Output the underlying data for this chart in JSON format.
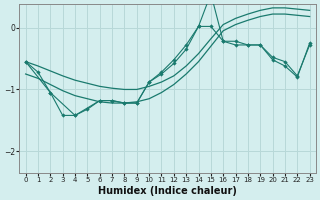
{
  "xlabel": "Humidex (Indice chaleur)",
  "bg_color": "#d4eeee",
  "line_color": "#1a7a6e",
  "grid_color": "#b8d8d8",
  "xlim": [
    -0.5,
    23.5
  ],
  "ylim": [
    -2.35,
    0.38
  ],
  "yticks": [
    0,
    -1,
    -2
  ],
  "xticks": [
    0,
    1,
    2,
    3,
    4,
    5,
    6,
    7,
    8,
    9,
    10,
    11,
    12,
    13,
    14,
    15,
    16,
    17,
    18,
    19,
    20,
    21,
    22,
    23
  ],
  "line_smooth1": {
    "x": [
      0,
      1,
      2,
      3,
      4,
      5,
      6,
      7,
      8,
      9,
      10,
      11,
      12,
      13,
      14,
      15,
      16,
      17,
      18,
      19,
      20,
      21,
      22,
      23
    ],
    "y": [
      -0.55,
      -0.62,
      -0.7,
      -0.78,
      -0.85,
      -0.9,
      -0.95,
      -0.98,
      -1.0,
      -1.0,
      -0.95,
      -0.88,
      -0.78,
      -0.62,
      -0.42,
      -0.18,
      0.05,
      0.15,
      0.22,
      0.28,
      0.32,
      0.32,
      0.3,
      0.28
    ]
  },
  "line_smooth2": {
    "x": [
      0,
      1,
      2,
      3,
      4,
      5,
      6,
      7,
      8,
      9,
      10,
      11,
      12,
      13,
      14,
      15,
      16,
      17,
      18,
      19,
      20,
      21,
      22,
      23
    ],
    "y": [
      -0.75,
      -0.82,
      -0.92,
      -1.02,
      -1.1,
      -1.15,
      -1.2,
      -1.22,
      -1.22,
      -1.2,
      -1.15,
      -1.05,
      -0.92,
      -0.75,
      -0.55,
      -0.3,
      -0.05,
      0.05,
      0.12,
      0.18,
      0.22,
      0.22,
      0.2,
      0.18
    ]
  },
  "line_zigzag": {
    "x": [
      0,
      1,
      2,
      3,
      4,
      5,
      6,
      7,
      8,
      9,
      10,
      11,
      12,
      13,
      14,
      15,
      16,
      17,
      18,
      19,
      20,
      21,
      22,
      23
    ],
    "y": [
      -0.55,
      -0.72,
      -1.05,
      -1.42,
      -1.42,
      -1.32,
      -1.18,
      -1.18,
      -1.22,
      -1.22,
      -0.88,
      -0.75,
      -0.58,
      -0.35,
      0.02,
      0.55,
      -0.22,
      -0.28,
      -0.28,
      -0.28,
      -0.52,
      -0.62,
      -0.8,
      -0.25
    ]
  },
  "line_sparse": {
    "x": [
      0,
      2,
      4,
      6,
      7,
      8,
      9,
      10,
      11,
      12,
      13,
      14,
      15,
      16,
      17,
      18,
      19,
      20,
      21,
      22,
      23
    ],
    "y": [
      -0.55,
      -1.05,
      -1.42,
      -1.18,
      -1.18,
      -1.22,
      -1.22,
      -0.88,
      -0.72,
      -0.52,
      -0.28,
      0.02,
      0.02,
      -0.22,
      -0.22,
      -0.28,
      -0.28,
      -0.48,
      -0.55,
      -0.78,
      -0.28
    ]
  }
}
